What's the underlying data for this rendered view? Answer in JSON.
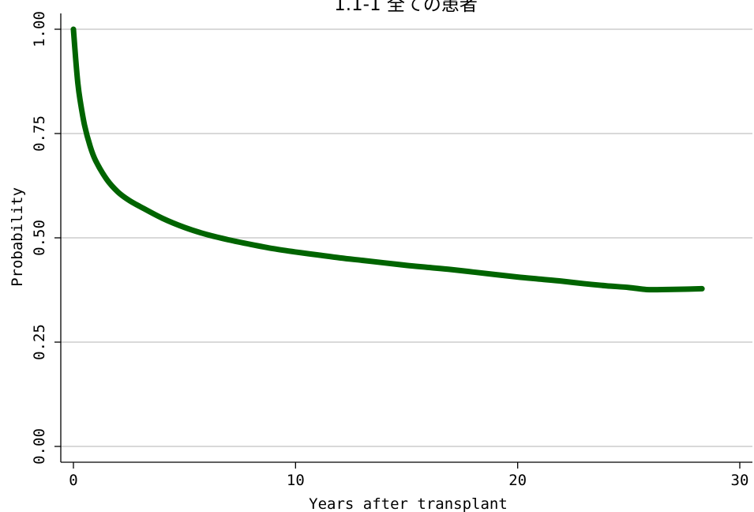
{
  "chart_data": {
    "type": "line",
    "title": "1.1-1 全ての患者",
    "xlabel": "Years after transplant",
    "ylabel": "Probability",
    "xlim": [
      0,
      30
    ],
    "ylim": [
      0,
      1
    ],
    "x_ticks": [
      0,
      10,
      20,
      30
    ],
    "x_tick_labels": [
      "0",
      "10",
      "20",
      "30"
    ],
    "y_ticks": [
      0,
      0.25,
      0.5,
      0.75,
      1.0
    ],
    "y_tick_labels": [
      "0.00",
      "0.25",
      "0.50",
      "0.75",
      "1.00"
    ],
    "grid": "horizontal",
    "series": [
      {
        "color": "#006400",
        "x": [
          0,
          0.1,
          0.2,
          0.3,
          0.5,
          0.75,
          1,
          1.5,
          2,
          2.5,
          3,
          4,
          5,
          6,
          7,
          8,
          9,
          10,
          11,
          12,
          13,
          14,
          15,
          16,
          17,
          18,
          19,
          20,
          21,
          22,
          23,
          24,
          25,
          25.8,
          26.5,
          27.5,
          28.3
        ],
        "y": [
          1.0,
          0.93,
          0.87,
          0.83,
          0.77,
          0.72,
          0.685,
          0.64,
          0.61,
          0.59,
          0.575,
          0.547,
          0.525,
          0.508,
          0.495,
          0.484,
          0.474,
          0.466,
          0.459,
          0.452,
          0.446,
          0.44,
          0.434,
          0.429,
          0.424,
          0.418,
          0.412,
          0.406,
          0.401,
          0.396,
          0.39,
          0.385,
          0.381,
          0.376,
          0.376,
          0.377,
          0.378
        ]
      }
    ]
  }
}
